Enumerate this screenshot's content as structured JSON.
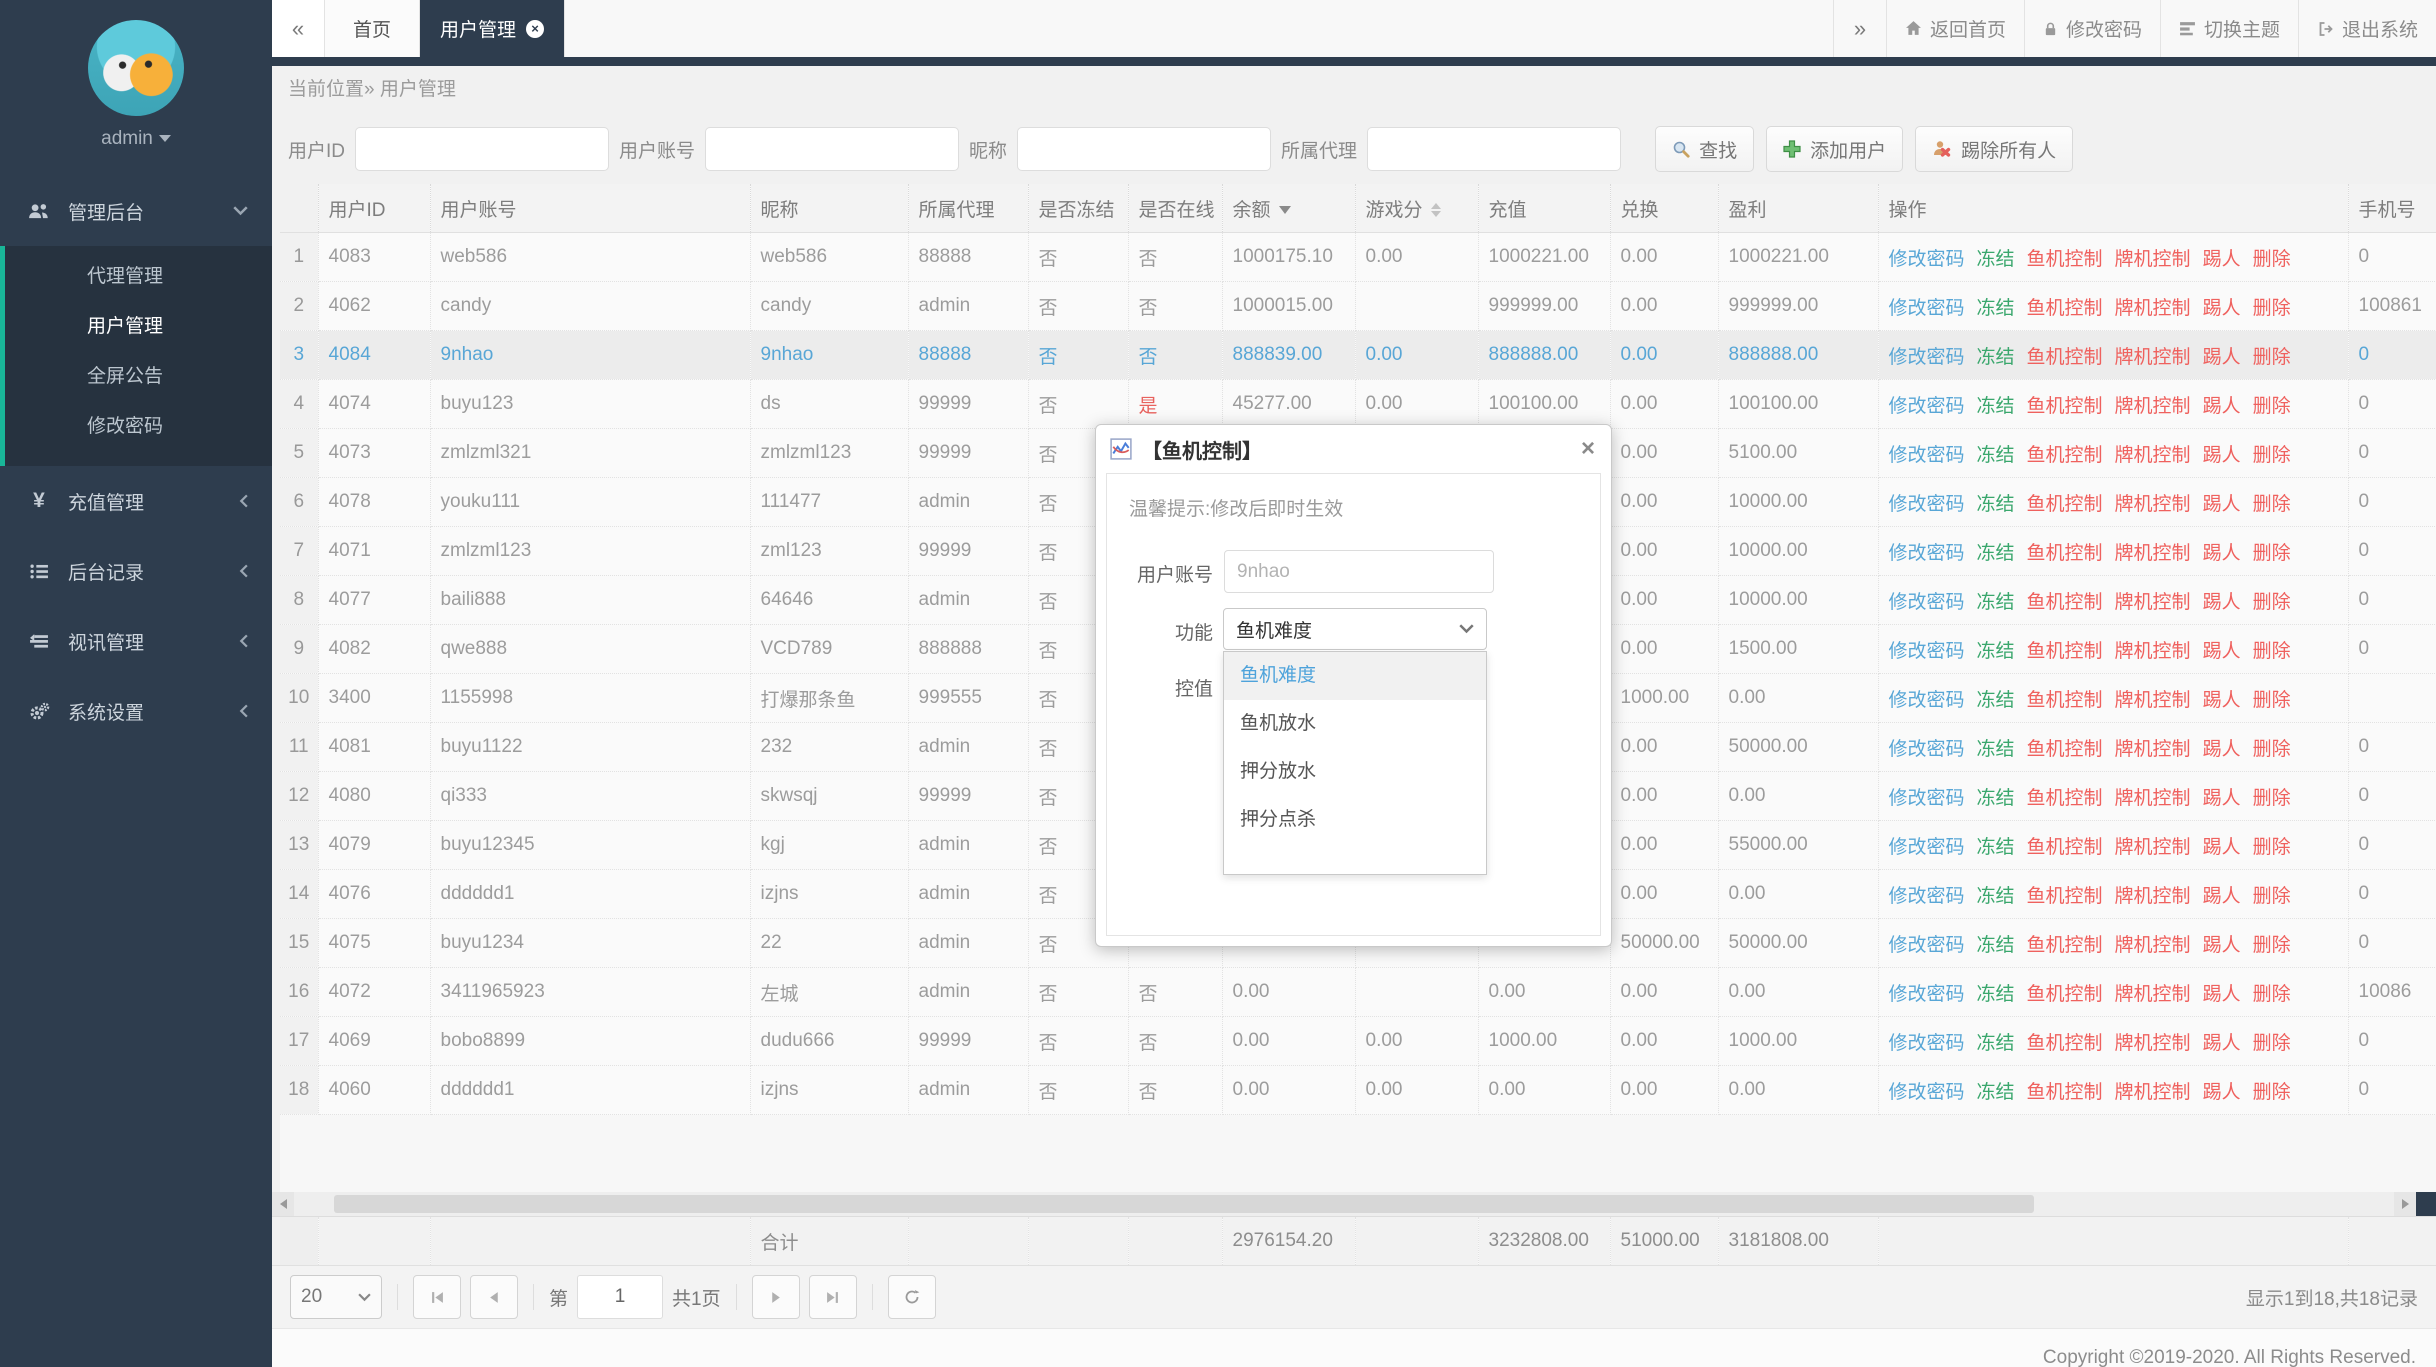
{
  "topbar": {
    "collapse_left": "«",
    "collapse_right": "»",
    "tabs": [
      {
        "label": "首页",
        "active": false,
        "closable": false
      },
      {
        "label": "用户管理",
        "active": true,
        "closable": true
      }
    ],
    "actions": [
      {
        "label": "返回首页",
        "icon": "home-icon",
        "name": "home-button"
      },
      {
        "label": "修改密码",
        "icon": "lock-icon",
        "name": "change-password-button"
      },
      {
        "label": "切换主题",
        "icon": "theme-icon",
        "name": "switch-theme-button"
      },
      {
        "label": "退出系统",
        "icon": "logout-icon",
        "name": "logout-button"
      }
    ]
  },
  "sidebar": {
    "username": "admin",
    "sections": [
      {
        "label": "管理后台",
        "icon": "users-icon",
        "name": "admin",
        "expanded": true,
        "children": [
          {
            "label": "代理管理",
            "name": "agents",
            "active": false
          },
          {
            "label": "用户管理",
            "name": "users",
            "active": true
          },
          {
            "label": "全屏公告",
            "name": "announcement",
            "active": false
          },
          {
            "label": "修改密码",
            "name": "password",
            "active": false
          }
        ]
      },
      {
        "label": "充值管理",
        "icon": "yen-icon",
        "name": "recharge",
        "expanded": false
      },
      {
        "label": "后台记录",
        "icon": "list-icon",
        "name": "records",
        "expanded": false
      },
      {
        "label": "视讯管理",
        "icon": "video-icon",
        "name": "video",
        "expanded": false
      },
      {
        "label": "系统设置",
        "icon": "gear-icon",
        "name": "settings",
        "expanded": false
      }
    ]
  },
  "breadcrumb": {
    "prefix": "当前位置»",
    "current": "用户管理"
  },
  "filters": {
    "fields": [
      {
        "label": "用户ID",
        "name": "user-id",
        "value": ""
      },
      {
        "label": "用户账号",
        "name": "account",
        "value": ""
      },
      {
        "label": "昵称",
        "name": "nickname",
        "value": ""
      },
      {
        "label": "所属代理",
        "name": "agent",
        "value": ""
      }
    ],
    "buttons": [
      {
        "label": "查找",
        "icon": "search-icon",
        "name": "search-button"
      },
      {
        "label": "添加用户",
        "icon": "add-icon",
        "name": "add-user-button"
      },
      {
        "label": "踢除所有人",
        "icon": "kick-icon",
        "name": "kick-all-button"
      }
    ]
  },
  "table": {
    "columns": [
      "",
      "用户ID",
      "用户账号",
      "昵称",
      "所属代理",
      "是否冻结",
      "是否在线",
      "余额",
      "游戏分",
      "充值",
      "兑换",
      "盈利",
      "操作",
      "手机号"
    ],
    "sort_desc_column": "余额",
    "sort_both_column": "游戏分",
    "action_labels": [
      "修改密码",
      "冻结",
      "鱼机控制",
      "牌机控制",
      "踢人",
      "删除"
    ],
    "rows": [
      {
        "idx": "1",
        "uid": "4083",
        "account": "web586",
        "nick": "web586",
        "agent": "88888",
        "frozen": "否",
        "online": "否",
        "balance": "1000175.10",
        "game": "0.00",
        "recharge": "1000221.00",
        "exchange": "0.00",
        "profit": "1000221.00",
        "phone": "0",
        "highlight": false
      },
      {
        "idx": "2",
        "uid": "4062",
        "account": "candy",
        "nick": "candy",
        "agent": "admin",
        "frozen": "否",
        "online": "否",
        "balance": "1000015.00",
        "game": "",
        "recharge": "999999.00",
        "exchange": "0.00",
        "profit": "999999.00",
        "phone": "100861",
        "highlight": false
      },
      {
        "idx": "3",
        "uid": "4084",
        "account": "9nhao",
        "nick": "9nhao",
        "agent": "88888",
        "frozen": "否",
        "online": "否",
        "balance": "888839.00",
        "game": "0.00",
        "recharge": "888888.00",
        "exchange": "0.00",
        "profit": "888888.00",
        "phone": "0",
        "highlight": true
      },
      {
        "idx": "4",
        "uid": "4074",
        "account": "buyu123",
        "nick": "ds",
        "agent": "99999",
        "frozen": "否",
        "online": "是",
        "balance": "45277.00",
        "game": "0.00",
        "recharge": "100100.00",
        "exchange": "0.00",
        "profit": "100100.00",
        "phone": "0",
        "highlight": false
      },
      {
        "idx": "5",
        "uid": "4073",
        "account": "zmlzml321",
        "nick": "zmlzml123",
        "agent": "99999",
        "frozen": "否",
        "online": "",
        "balance": "",
        "game": "",
        "recharge": "",
        "exchange": "0.00",
        "profit": "5100.00",
        "phone": "0",
        "highlight": false
      },
      {
        "idx": "6",
        "uid": "4078",
        "account": "youku111",
        "nick": "111477",
        "agent": "admin",
        "frozen": "否",
        "online": "",
        "balance": "",
        "game": "",
        "recharge": "",
        "exchange": "0.00",
        "profit": "10000.00",
        "phone": "0",
        "highlight": false
      },
      {
        "idx": "7",
        "uid": "4071",
        "account": "zmlzml123",
        "nick": "zml123",
        "agent": "99999",
        "frozen": "否",
        "online": "",
        "balance": "",
        "game": "",
        "recharge": "",
        "exchange": "0.00",
        "profit": "10000.00",
        "phone": "0",
        "highlight": false
      },
      {
        "idx": "8",
        "uid": "4077",
        "account": "baili888",
        "nick": "64646",
        "agent": "admin",
        "frozen": "否",
        "online": "",
        "balance": "",
        "game": "",
        "recharge": "",
        "exchange": "0.00",
        "profit": "10000.00",
        "phone": "0",
        "highlight": false
      },
      {
        "idx": "9",
        "uid": "4082",
        "account": "qwe888",
        "nick": "VCD789",
        "agent": "888888",
        "frozen": "否",
        "online": "",
        "balance": "",
        "game": "",
        "recharge": "",
        "exchange": "0.00",
        "profit": "1500.00",
        "phone": "0",
        "highlight": false
      },
      {
        "idx": "10",
        "uid": "3400",
        "account": "1155998",
        "nick": "打爆那条鱼",
        "agent": "999555",
        "frozen": "否",
        "online": "",
        "balance": "",
        "game": "",
        "recharge": "",
        "exchange": "1000.00",
        "profit": "0.00",
        "phone": "",
        "highlight": false
      },
      {
        "idx": "11",
        "uid": "4081",
        "account": "buyu1122",
        "nick": "232",
        "agent": "admin",
        "frozen": "否",
        "online": "",
        "balance": "",
        "game": "",
        "recharge": "",
        "exchange": "0.00",
        "profit": "50000.00",
        "phone": "0",
        "highlight": false
      },
      {
        "idx": "12",
        "uid": "4080",
        "account": "qi333",
        "nick": "skwsqj",
        "agent": "99999",
        "frozen": "否",
        "online": "",
        "balance": "",
        "game": "",
        "recharge": "",
        "exchange": "0.00",
        "profit": "0.00",
        "phone": "0",
        "highlight": false
      },
      {
        "idx": "13",
        "uid": "4079",
        "account": "buyu12345",
        "nick": "kgj",
        "agent": "admin",
        "frozen": "否",
        "online": "",
        "balance": "",
        "game": "",
        "recharge": "",
        "exchange": "0.00",
        "profit": "55000.00",
        "phone": "0",
        "highlight": false
      },
      {
        "idx": "14",
        "uid": "4076",
        "account": "dddddd1",
        "nick": "izjns",
        "agent": "admin",
        "frozen": "否",
        "online": "",
        "balance": "",
        "game": "",
        "recharge": "",
        "exchange": "0.00",
        "profit": "0.00",
        "phone": "0",
        "highlight": false
      },
      {
        "idx": "15",
        "uid": "4075",
        "account": "buyu1234",
        "nick": "22",
        "agent": "admin",
        "frozen": "否",
        "online": "",
        "balance": "",
        "game": "",
        "recharge": "",
        "exchange": "50000.00",
        "profit": "50000.00",
        "phone": "0",
        "highlight": false
      },
      {
        "idx": "16",
        "uid": "4072",
        "account": "3411965923",
        "nick": "左城",
        "agent": "admin",
        "frozen": "否",
        "online": "否",
        "balance": "0.00",
        "game": "",
        "recharge": "0.00",
        "exchange": "0.00",
        "profit": "0.00",
        "phone": "10086",
        "highlight": false
      },
      {
        "idx": "17",
        "uid": "4069",
        "account": "bobo8899",
        "nick": "dudu666",
        "agent": "99999",
        "frozen": "否",
        "online": "否",
        "balance": "0.00",
        "game": "0.00",
        "recharge": "1000.00",
        "exchange": "0.00",
        "profit": "1000.00",
        "phone": "0",
        "highlight": false
      },
      {
        "idx": "18",
        "uid": "4060",
        "account": "dddddd1",
        "nick": "izjns",
        "agent": "admin",
        "frozen": "否",
        "online": "否",
        "balance": "0.00",
        "game": "0.00",
        "recharge": "0.00",
        "exchange": "0.00",
        "profit": "0.00",
        "phone": "0",
        "highlight": false
      }
    ],
    "summary": {
      "label": "合计",
      "balance": "2976154.20",
      "recharge": "3232808.00",
      "exchange": "51000.00",
      "profit": "3181808.00"
    }
  },
  "modal": {
    "title": "【鱼机控制】",
    "hint": "温馨提示:修改后即时生效",
    "account_label": "用户账号",
    "account_value": "9nhao",
    "func_label": "功能",
    "func_value": "鱼机难度",
    "ctrl_label": "控值",
    "options": [
      {
        "label": "鱼机难度",
        "selected": true
      },
      {
        "label": "鱼机放水",
        "selected": false
      },
      {
        "label": "押分放水",
        "selected": false
      },
      {
        "label": "押分点杀",
        "selected": false
      }
    ]
  },
  "pagination": {
    "page_size": "20",
    "page_prefix": "第",
    "page_value": "1",
    "page_suffix": "共1页",
    "info": "显示1到18,共18记录"
  },
  "footer": {
    "copyright": "Copyright ©2019-2020. All Rights Reserved."
  },
  "colors": {
    "accent_dark": "#2e3d4e",
    "teal": "#19b698",
    "link_blue": "#58a6d6",
    "green": "#3aa76d",
    "red": "#ef615e"
  }
}
